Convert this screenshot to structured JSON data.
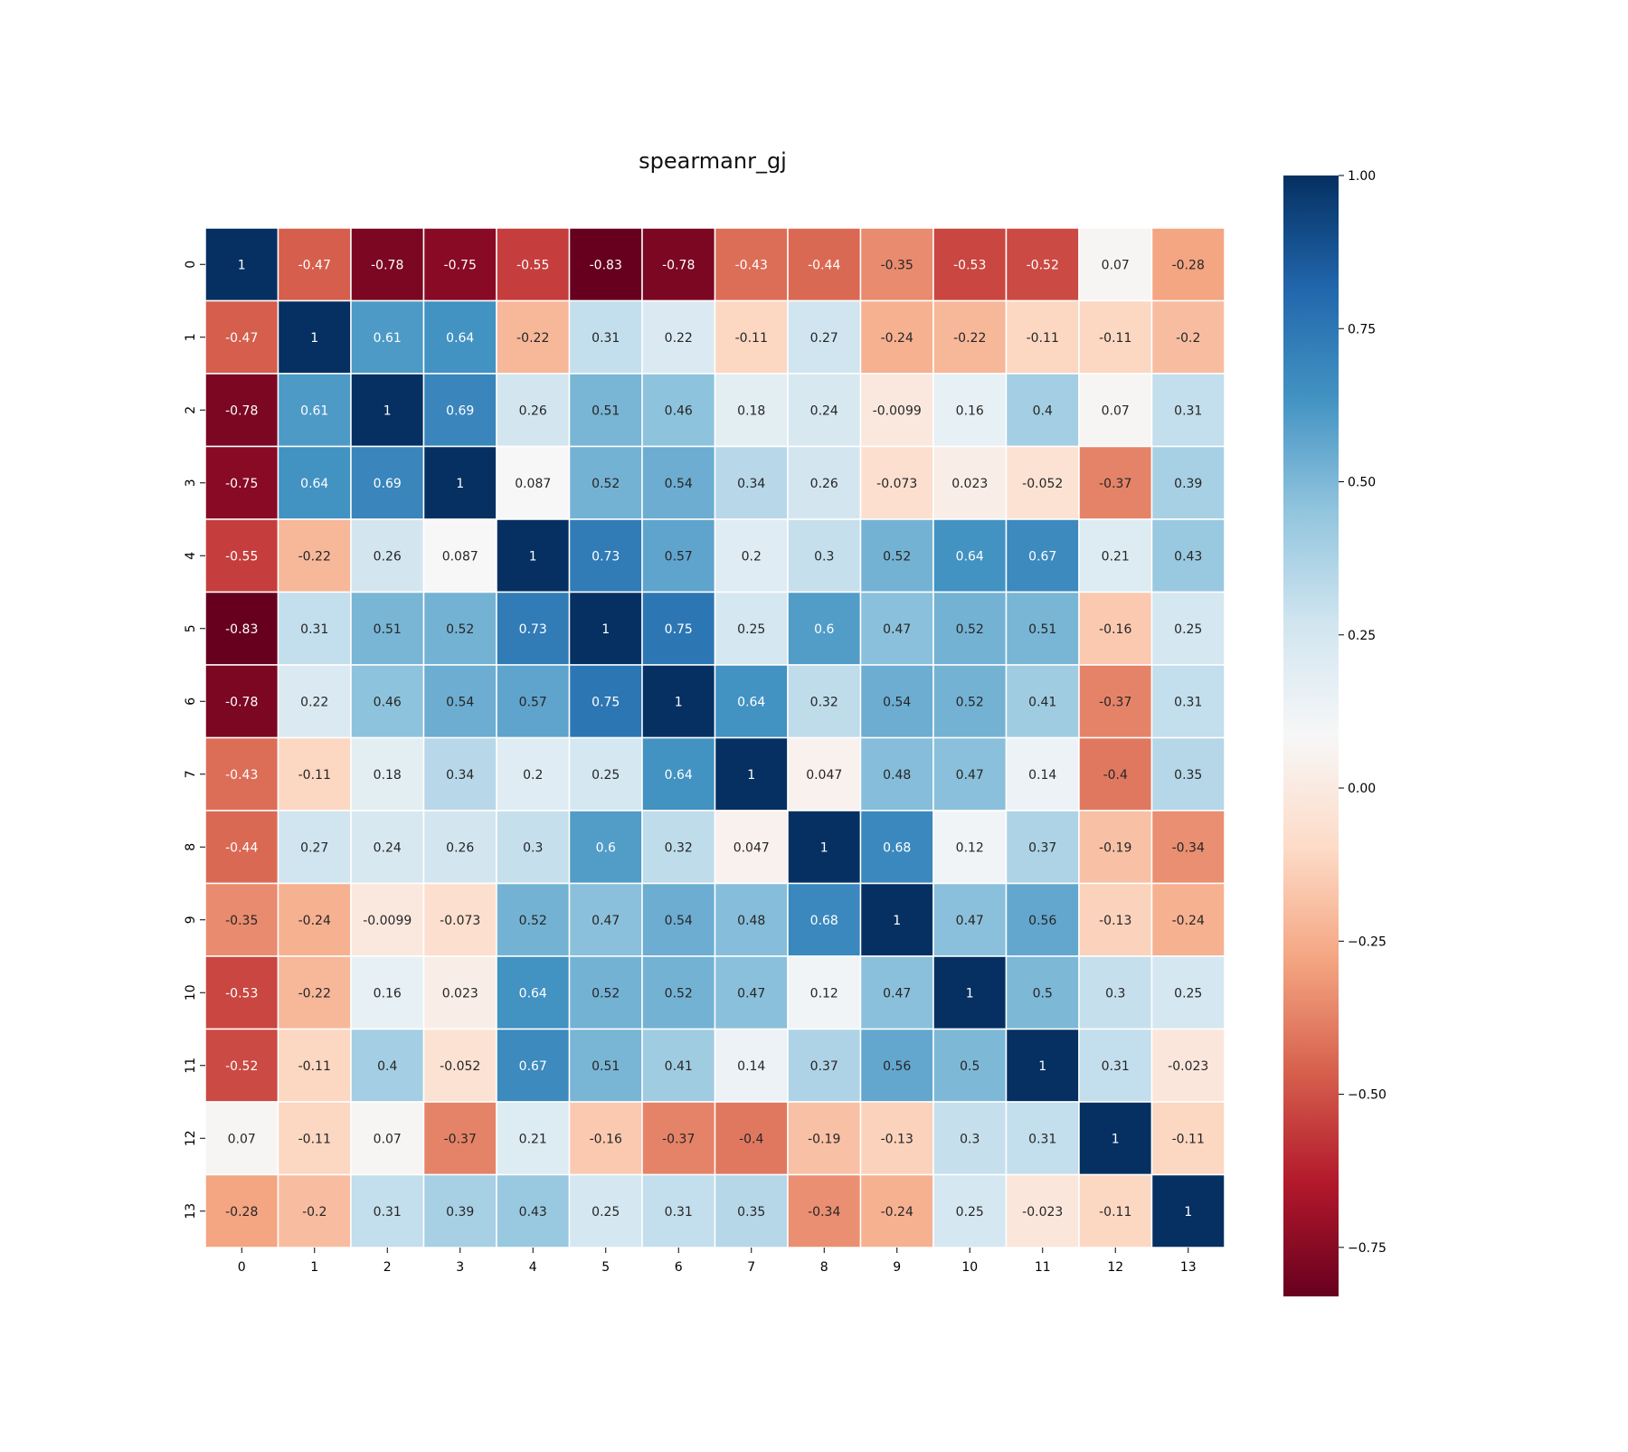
{
  "chart_data": {
    "type": "heatmap",
    "title": "spearmanr_gj",
    "xlabel": "",
    "ylabel": "",
    "x_categories": [
      "0",
      "1",
      "2",
      "3",
      "4",
      "5",
      "6",
      "7",
      "8",
      "9",
      "10",
      "11",
      "12",
      "13"
    ],
    "y_categories": [
      "0",
      "1",
      "2",
      "3",
      "4",
      "5",
      "6",
      "7",
      "8",
      "9",
      "10",
      "11",
      "12",
      "13"
    ],
    "values": [
      [
        "1",
        "-0.47",
        "-0.78",
        "-0.75",
        "-0.55",
        "-0.83",
        "-0.78",
        "-0.43",
        "-0.44",
        "-0.35",
        "-0.53",
        "-0.52",
        "0.07",
        "-0.28"
      ],
      [
        "-0.47",
        "1",
        "0.61",
        "0.64",
        "-0.22",
        "0.31",
        "0.22",
        "-0.11",
        "0.27",
        "-0.24",
        "-0.22",
        "-0.11",
        "-0.11",
        "-0.2"
      ],
      [
        "-0.78",
        "0.61",
        "1",
        "0.69",
        "0.26",
        "0.51",
        "0.46",
        "0.18",
        "0.24",
        "-0.0099",
        "0.16",
        "0.4",
        "0.07",
        "0.31"
      ],
      [
        "-0.75",
        "0.64",
        "0.69",
        "1",
        "0.087",
        "0.52",
        "0.54",
        "0.34",
        "0.26",
        "-0.073",
        "0.023",
        "-0.052",
        "-0.37",
        "0.39"
      ],
      [
        "-0.55",
        "-0.22",
        "0.26",
        "0.087",
        "1",
        "0.73",
        "0.57",
        "0.2",
        "0.3",
        "0.52",
        "0.64",
        "0.67",
        "0.21",
        "0.43"
      ],
      [
        "-0.83",
        "0.31",
        "0.51",
        "0.52",
        "0.73",
        "1",
        "0.75",
        "0.25",
        "0.6",
        "0.47",
        "0.52",
        "0.51",
        "-0.16",
        "0.25"
      ],
      [
        "-0.78",
        "0.22",
        "0.46",
        "0.54",
        "0.57",
        "0.75",
        "1",
        "0.64",
        "0.32",
        "0.54",
        "0.52",
        "0.41",
        "-0.37",
        "0.31"
      ],
      [
        "-0.43",
        "-0.11",
        "0.18",
        "0.34",
        "0.2",
        "0.25",
        "0.64",
        "1",
        "0.047",
        "0.48",
        "0.47",
        "0.14",
        "-0.4",
        "0.35"
      ],
      [
        "-0.44",
        "0.27",
        "0.24",
        "0.26",
        "0.3",
        "0.6",
        "0.32",
        "0.047",
        "1",
        "0.68",
        "0.12",
        "0.37",
        "-0.19",
        "-0.34"
      ],
      [
        "-0.35",
        "-0.24",
        "-0.0099",
        "-0.073",
        "0.52",
        "0.47",
        "0.54",
        "0.48",
        "0.68",
        "1",
        "0.47",
        "0.56",
        "-0.13",
        "-0.24"
      ],
      [
        "-0.53",
        "-0.22",
        "0.16",
        "0.023",
        "0.64",
        "0.52",
        "0.52",
        "0.47",
        "0.12",
        "0.47",
        "1",
        "0.5",
        "0.3",
        "0.25"
      ],
      [
        "-0.52",
        "-0.11",
        "0.4",
        "-0.052",
        "0.67",
        "0.51",
        "0.41",
        "0.14",
        "0.37",
        "0.56",
        "0.5",
        "1",
        "0.31",
        "-0.023"
      ],
      [
        "0.07",
        "-0.11",
        "0.07",
        "-0.37",
        "0.21",
        "-0.16",
        "-0.37",
        "-0.4",
        "-0.19",
        "-0.13",
        "0.3",
        "0.31",
        "1",
        "-0.11"
      ],
      [
        "-0.28",
        "-0.2",
        "0.31",
        "0.39",
        "0.43",
        "0.25",
        "0.31",
        "0.35",
        "-0.34",
        "-0.24",
        "0.25",
        "-0.023",
        "-0.11",
        "1"
      ]
    ],
    "colormap": "RdBu",
    "color_range": [
      -0.83,
      1.0
    ],
    "colorbar_ticks": [
      "1.00",
      "0.75",
      "0.50",
      "0.25",
      "0.00",
      "−0.25",
      "−0.50",
      "−0.75"
    ],
    "colorbar_tick_values": [
      1.0,
      0.75,
      0.5,
      0.25,
      0.0,
      -0.25,
      -0.5,
      -0.75
    ],
    "grid": true,
    "legend": "colorbar-right"
  }
}
